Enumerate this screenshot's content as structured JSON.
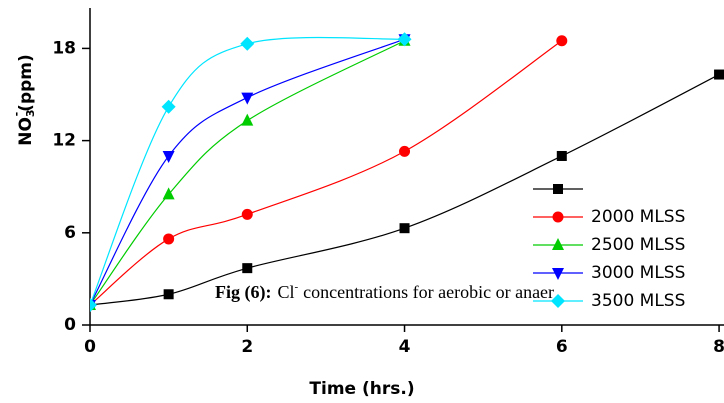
{
  "chart_data": {
    "type": "line",
    "xlabel": "Time (hrs.)",
    "ylabel": [
      "NO",
      "3",
      "-",
      "(ppm)"
    ],
    "caption": [
      "Fig (6):",
      "Cl",
      "-",
      "concentrations for aerobic or anaer"
    ],
    "xlim": [
      0,
      8.05
    ],
    "ylim": [
      0,
      20.5
    ],
    "xticks": [
      0,
      2,
      4,
      6,
      8
    ],
    "yticks": [
      0,
      6,
      12,
      18
    ],
    "series": [
      {
        "name": null,
        "color": "#000000",
        "marker": "square",
        "x": [
          0,
          1,
          2,
          4,
          6,
          8
        ],
        "values": [
          1.3,
          2.0,
          3.7,
          6.3,
          11.0,
          16.3
        ]
      },
      {
        "name": "2000 MLSS",
        "color": "#ff0000",
        "marker": "circle",
        "x": [
          0,
          1,
          2,
          4,
          6
        ],
        "values": [
          1.3,
          5.6,
          7.2,
          11.3,
          18.5
        ]
      },
      {
        "name": "2500 MLSS",
        "color": "#00cc00",
        "marker": "triangle-up",
        "x": [
          0,
          1,
          2,
          4
        ],
        "values": [
          1.3,
          8.5,
          13.3,
          18.5
        ]
      },
      {
        "name": "3000 MLSS",
        "color": "#0000ff",
        "marker": "triangle-down",
        "x": [
          0,
          1,
          2,
          4
        ],
        "values": [
          1.3,
          11.0,
          14.8,
          18.6
        ]
      },
      {
        "name": "3500 MLSS",
        "color": "#00e5ff",
        "marker": "diamond",
        "x": [
          0,
          1,
          2,
          4
        ],
        "values": [
          1.3,
          14.2,
          18.3,
          18.6
        ]
      }
    ]
  }
}
